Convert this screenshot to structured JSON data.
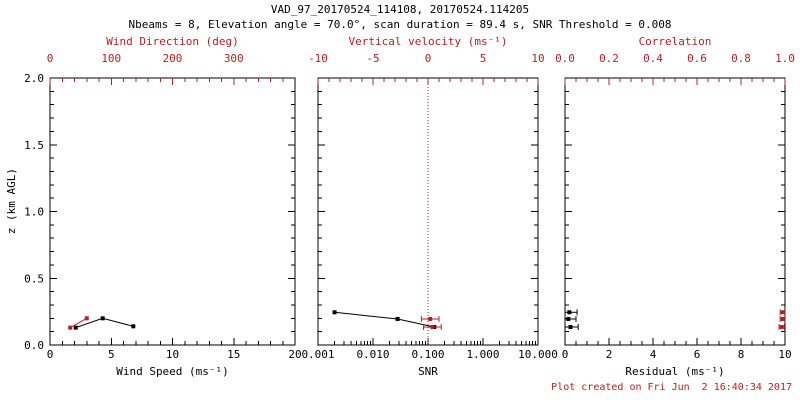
{
  "header": {
    "title": "VAD_97_20170524_114108, 20170524.114205",
    "subtitle": "Nbeams = 8, Elevation angle = 70.0°, scan duration = 89.4 s, SNR Threshold = 0.008"
  },
  "footer": {
    "created": "Plot created on Fri Jun  2 16:40:34 2017"
  },
  "colors": {
    "red": "#b22222",
    "black": "#000000",
    "background": "#ffffff"
  },
  "chart_data": [
    {
      "id": "wind",
      "type": "scatter",
      "xlabel": "Wind Speed (ms⁻¹)",
      "xscale": "linear",
      "xlim": [
        0,
        20
      ],
      "xticks": [
        0,
        5,
        10,
        15,
        20
      ],
      "xtick_labels": [
        "0",
        "5",
        "10",
        "15",
        "20"
      ],
      "xminor_step": 1,
      "x2label": "Wind Direction (deg)",
      "x2lim": [
        0,
        400
      ],
      "x2ticks": [
        0,
        100,
        200,
        300
      ],
      "x2tick_labels": [
        "0",
        "100",
        "200",
        "300"
      ],
      "x2minor_step": 20,
      "ylabel": "z (km AGL)",
      "ylim": [
        0,
        2
      ],
      "yticks": [
        0,
        0.5,
        1,
        1.5,
        2
      ],
      "ytick_labels": [
        "0.0",
        "0.5",
        "1.0",
        "1.5",
        "2.0"
      ],
      "yminor_step": 0.1,
      "show_ytick_labels": true,
      "series": [
        {
          "name": "wind-speed",
          "axis": "bottom",
          "color": "#000000",
          "line": true,
          "marker": "square",
          "points": [
            {
              "x": 2.1,
              "z": 0.13
            },
            {
              "x": 4.3,
              "z": 0.2
            },
            {
              "x": 6.8,
              "z": 0.14
            }
          ]
        },
        {
          "name": "wind-direction",
          "axis": "top",
          "color": "#b22222",
          "line": true,
          "marker": "square",
          "points": [
            {
              "x": 33,
              "z": 0.13
            },
            {
              "x": 60,
              "z": 0.2
            }
          ]
        }
      ]
    },
    {
      "id": "snr",
      "type": "scatter",
      "xlabel": "SNR",
      "xscale": "log",
      "xlim": [
        0.001,
        10
      ],
      "xticks": [
        0.001,
        0.01,
        0.1,
        1,
        10
      ],
      "xtick_labels": [
        "0.001",
        "0.010",
        "0.100",
        "1.000",
        "10.000"
      ],
      "x2label": "Vertical velocity (ms⁻¹)",
      "x2lim": [
        -10,
        10
      ],
      "x2ticks": [
        -10,
        -5,
        0,
        5,
        10
      ],
      "x2tick_labels": [
        "-10",
        "-5",
        "0",
        "5",
        "10"
      ],
      "x2minor_step": 1,
      "ylim": [
        0,
        2
      ],
      "yticks": [
        0,
        0.5,
        1,
        1.5,
        2
      ],
      "ytick_labels": [
        "0.0",
        "0.5",
        "1.0",
        "1.5",
        "2.0"
      ],
      "yminor_step": 0.1,
      "show_ytick_labels": false,
      "zero_line": {
        "axis": "top",
        "value": 0,
        "style": "dotted"
      },
      "series": [
        {
          "name": "snr",
          "axis": "bottom",
          "color": "#000000",
          "line": true,
          "marker": "square",
          "points": [
            {
              "x": 0.002,
              "z": 0.245
            },
            {
              "x": 0.028,
              "z": 0.195
            },
            {
              "x": 0.13,
              "z": 0.135
            }
          ]
        },
        {
          "name": "vertical-velocity",
          "axis": "top",
          "color": "#b22222",
          "line": false,
          "marker": "square",
          "points": [
            {
              "x": 0.2,
              "z": 0.195,
              "xerr": 0.8
            },
            {
              "x": 0.4,
              "z": 0.135,
              "xerr": 0.8
            }
          ]
        }
      ]
    },
    {
      "id": "residual",
      "type": "scatter",
      "xlabel": "Residual (ms⁻¹)",
      "xscale": "linear",
      "xlim": [
        0,
        10
      ],
      "xticks": [
        0,
        2,
        4,
        6,
        8,
        10
      ],
      "xtick_labels": [
        "0",
        "2",
        "4",
        "6",
        "8",
        "10"
      ],
      "xminor_step": 0.5,
      "x2label": "Correlation",
      "x2lim": [
        0,
        1
      ],
      "x2ticks": [
        0,
        0.2,
        0.4,
        0.6,
        0.8,
        1.0
      ],
      "x2tick_labels": [
        "0.0",
        "0.2",
        "0.4",
        "0.6",
        "0.8",
        "1.0"
      ],
      "x2minor_step": 0.05,
      "ylim": [
        0,
        2
      ],
      "yticks": [
        0,
        0.5,
        1,
        1.5,
        2
      ],
      "ytick_labels": [
        "0.0",
        "0.5",
        "1.0",
        "1.5",
        "2.0"
      ],
      "yminor_step": 0.1,
      "show_ytick_labels": false,
      "series": [
        {
          "name": "residual",
          "axis": "bottom",
          "color": "#000000",
          "line": false,
          "marker": "square",
          "points": [
            {
              "x": 0.2,
              "z": 0.245,
              "xerr": 0.35
            },
            {
              "x": 0.15,
              "z": 0.195,
              "xerr": 0.35
            },
            {
              "x": 0.25,
              "z": 0.135,
              "xerr": 0.35
            }
          ]
        },
        {
          "name": "correlation",
          "axis": "top",
          "color": "#b22222",
          "line": false,
          "marker": "square",
          "points": [
            {
              "x": 0.99,
              "z": 0.245,
              "xerr": 0.012
            },
            {
              "x": 0.99,
              "z": 0.195,
              "xerr": 0.012
            },
            {
              "x": 0.985,
              "z": 0.135,
              "xerr": 0.012
            }
          ]
        }
      ]
    }
  ]
}
